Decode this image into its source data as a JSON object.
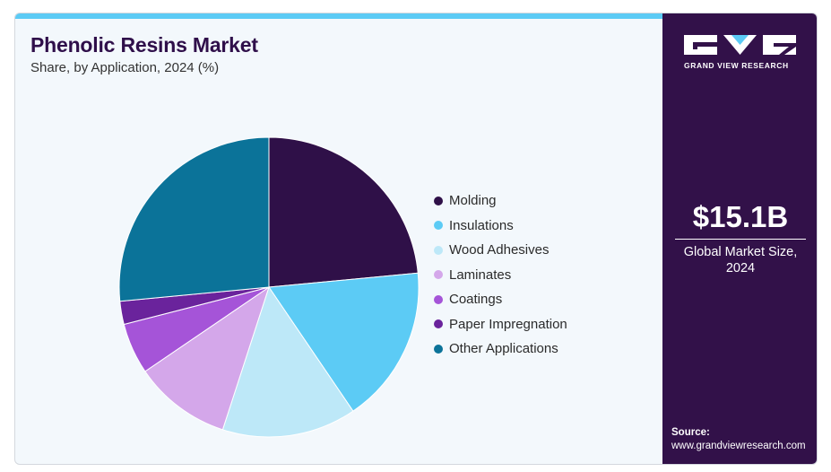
{
  "header": {
    "title": "Phenolic Resins Market",
    "subtitle": "Share, by Application, 2024 (%)"
  },
  "brand": {
    "name": "GRAND VIEW RESEARCH",
    "panel_color": "#321149",
    "accent_color": "#5ccbf5"
  },
  "sidebar": {
    "market_value": "$15.1B",
    "market_label": "Global Market Size, 2024",
    "source_label": "Source:",
    "source_url": "www.grandviewresearch.com"
  },
  "chart_data": {
    "type": "pie",
    "title": "Phenolic Resins Market",
    "subtitle": "Share, by Application, 2024 (%)",
    "unit": "%",
    "start_angle_deg": 0,
    "direction": "clockwise",
    "legend_position": "right",
    "categories": [
      "Molding",
      "Insulations",
      "Wood Adhesives",
      "Laminates",
      "Coatings",
      "Paper Impregnation",
      "Other Applications"
    ],
    "values": [
      23.5,
      17.0,
      14.5,
      10.5,
      5.5,
      2.5,
      26.5
    ],
    "colors": [
      "#2f1048",
      "#5ccbf5",
      "#bde8f8",
      "#d4a7ea",
      "#a554d8",
      "#6a239c",
      "#0b7399"
    ]
  }
}
